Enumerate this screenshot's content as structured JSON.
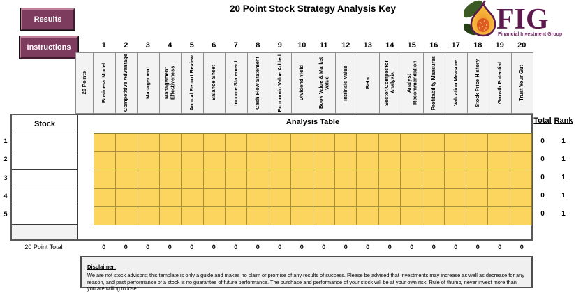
{
  "title": "20 Point Stock Strategy Analysis Key",
  "buttons": {
    "results": "Results",
    "instructions": "Instructions"
  },
  "logo": {
    "text": "FIG",
    "subtitle": "Financial Investment Group"
  },
  "table": {
    "points_header": "20 Points",
    "stock_header": "Stock",
    "analysis_header": "Analysis Table",
    "total_header": "Total",
    "rank_header": "Rank",
    "footer_label": "20 Point Total",
    "columns": [
      {
        "num": "1",
        "label": "Business Model"
      },
      {
        "num": "2",
        "label": "Competitive Advantage"
      },
      {
        "num": "3",
        "label": "Management"
      },
      {
        "num": "4",
        "label": "Management Effectiveness"
      },
      {
        "num": "5",
        "label": "Annual Report Review"
      },
      {
        "num": "6",
        "label": "Balance Sheet"
      },
      {
        "num": "7",
        "label": "Income Statement"
      },
      {
        "num": "8",
        "label": "Cash Flow Statement"
      },
      {
        "num": "9",
        "label": "Economic Value Added"
      },
      {
        "num": "10",
        "label": "Dividend Yield"
      },
      {
        "num": "11",
        "label": "Book Value & Market Value"
      },
      {
        "num": "12",
        "label": "Intrinsic Value"
      },
      {
        "num": "13",
        "label": "Beta"
      },
      {
        "num": "14",
        "label": "Sector/Competitor Analysis"
      },
      {
        "num": "15",
        "label": "Analyst Recommendation"
      },
      {
        "num": "16",
        "label": "Profitability Measures"
      },
      {
        "num": "17",
        "label": "Valuation Measure"
      },
      {
        "num": "18",
        "label": "Stock Price History"
      },
      {
        "num": "19",
        "label": "Growth Potential"
      },
      {
        "num": "20",
        "label": "Trust Your Gut"
      }
    ],
    "rows": [
      {
        "num": "1",
        "stock": "",
        "total": "0",
        "rank": "1"
      },
      {
        "num": "2",
        "stock": "",
        "total": "0",
        "rank": "1"
      },
      {
        "num": "3",
        "stock": "",
        "total": "0",
        "rank": "1"
      },
      {
        "num": "4",
        "stock": "",
        "total": "0",
        "rank": "1"
      },
      {
        "num": "5",
        "stock": "",
        "total": "0",
        "rank": "1"
      }
    ],
    "footer_totals": [
      "0",
      "0",
      "0",
      "0",
      "0",
      "0",
      "0",
      "0",
      "0",
      "0",
      "0",
      "0",
      "0",
      "0",
      "0",
      "0",
      "0",
      "0",
      "0",
      "0"
    ]
  },
  "disclaimer": {
    "heading": "Disclaimer:",
    "body": "We are not stock advisors; this template is only a guide and makes no claim or promise of any results of success. Please be advised that investments may increase as well as decrease for any reason, and past performance of a stock is no guarantee of future performance. The purchase and performance of your stock will be at your own risk. Rule of thumb, never invest more than you are willing to lose."
  },
  "colors": {
    "button_plum": "#7d3c5e",
    "cell_yellow": "#fcd55f",
    "grid_line_olive": "#a6913c",
    "logo_purple": "#5c1a4e",
    "header_gray": "#f3f3f3"
  }
}
